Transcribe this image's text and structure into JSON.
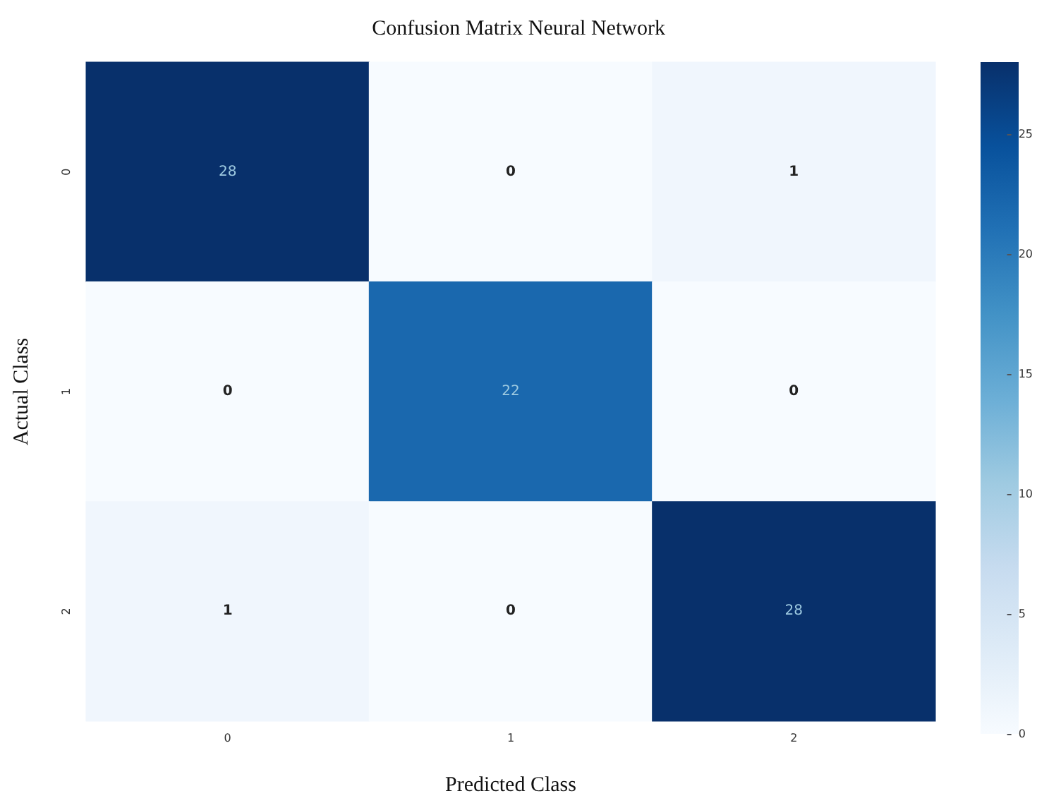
{
  "chart_data": {
    "type": "heatmap",
    "title": "Confusion Matrix Neural Network",
    "xlabel": "Predicted Class",
    "ylabel": "Actual Class",
    "categories": [
      "0",
      "1",
      "2"
    ],
    "y_categories": [
      "0",
      "1",
      "2"
    ],
    "cells": [
      [
        28,
        0,
        1
      ],
      [
        0,
        22,
        0
      ],
      [
        1,
        0,
        28
      ]
    ],
    "data_labels": true,
    "clim": [
      0,
      28
    ],
    "cticks": [
      0,
      5,
      10,
      15,
      20,
      25
    ]
  }
}
